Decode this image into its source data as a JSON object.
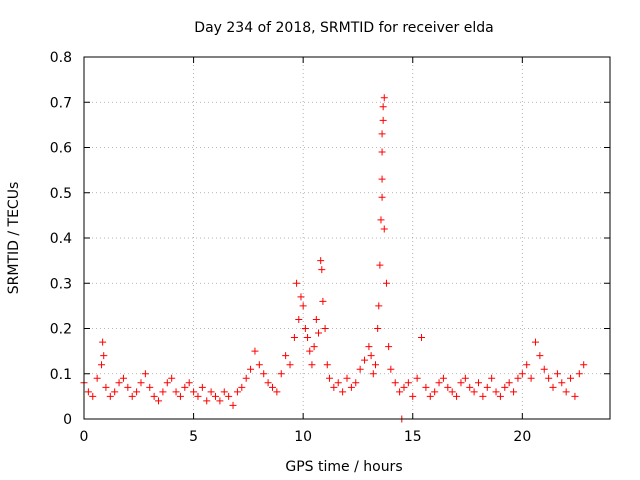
{
  "chart_data": {
    "type": "scatter",
    "title": "Day 234 of 2018, SRMTID for receiver elda",
    "xlabel": "GPS time / hours",
    "ylabel": "SRMTID / TECUs",
    "xlim": [
      0,
      24
    ],
    "ylim": [
      0,
      0.8
    ],
    "xticks": [
      0,
      5,
      10,
      15,
      20
    ],
    "yticks": [
      0,
      0.1,
      0.2,
      0.3,
      0.4,
      0.5,
      0.6,
      0.7,
      0.8
    ],
    "xtick_labels": [
      "0",
      "5",
      "10",
      "15",
      "20"
    ],
    "ytick_labels": [
      "0",
      "0.1",
      "0.2",
      "0.3",
      "0.4",
      "0.5",
      "0.6",
      "0.7",
      "0.8"
    ],
    "grid": true,
    "marker": "+",
    "series": [
      {
        "name": "SRMTID",
        "color": "#ff0000",
        "x": [
          0.0,
          0.2,
          0.4,
          0.6,
          0.8,
          0.85,
          0.9,
          1.0,
          1.2,
          1.4,
          1.6,
          1.8,
          2.0,
          2.2,
          2.4,
          2.6,
          2.8,
          3.0,
          3.2,
          3.4,
          3.6,
          3.8,
          4.0,
          4.2,
          4.4,
          4.6,
          4.8,
          5.0,
          5.2,
          5.4,
          5.6,
          5.8,
          6.0,
          6.2,
          6.4,
          6.6,
          6.8,
          7.0,
          7.2,
          7.4,
          7.6,
          7.8,
          8.0,
          8.2,
          8.4,
          8.6,
          8.8,
          9.0,
          9.2,
          9.4,
          9.6,
          9.7,
          9.8,
          9.9,
          10.0,
          10.1,
          10.2,
          10.3,
          10.4,
          10.5,
          10.6,
          10.7,
          10.8,
          10.85,
          10.9,
          11.0,
          11.1,
          11.2,
          11.4,
          11.6,
          11.8,
          12.0,
          12.2,
          12.4,
          12.6,
          12.8,
          13.0,
          13.1,
          13.2,
          13.3,
          13.4,
          13.45,
          13.5,
          13.55,
          13.6,
          13.6,
          13.6,
          13.6,
          13.65,
          13.65,
          13.7,
          13.7,
          13.8,
          13.9,
          14.0,
          14.2,
          14.4,
          14.5,
          14.6,
          14.8,
          15.0,
          15.2,
          15.4,
          15.6,
          15.8,
          16.0,
          16.2,
          16.4,
          16.6,
          16.8,
          17.0,
          17.2,
          17.4,
          17.6,
          17.8,
          18.0,
          18.2,
          18.4,
          18.6,
          18.8,
          19.0,
          19.2,
          19.4,
          19.6,
          19.8,
          20.0,
          20.2,
          20.4,
          20.6,
          20.8,
          21.0,
          21.2,
          21.4,
          21.6,
          21.8,
          22.0,
          22.2,
          22.4,
          22.6,
          22.8
        ],
        "y": [
          0.08,
          0.06,
          0.05,
          0.09,
          0.12,
          0.17,
          0.14,
          0.07,
          0.05,
          0.06,
          0.08,
          0.09,
          0.07,
          0.05,
          0.06,
          0.08,
          0.1,
          0.07,
          0.05,
          0.04,
          0.06,
          0.08,
          0.09,
          0.06,
          0.05,
          0.07,
          0.08,
          0.06,
          0.05,
          0.07,
          0.04,
          0.06,
          0.05,
          0.04,
          0.06,
          0.05,
          0.03,
          0.06,
          0.07,
          0.09,
          0.11,
          0.15,
          0.12,
          0.1,
          0.08,
          0.07,
          0.06,
          0.1,
          0.14,
          0.12,
          0.18,
          0.3,
          0.22,
          0.27,
          0.25,
          0.2,
          0.18,
          0.15,
          0.12,
          0.16,
          0.22,
          0.19,
          0.35,
          0.33,
          0.26,
          0.2,
          0.12,
          0.09,
          0.07,
          0.08,
          0.06,
          0.09,
          0.07,
          0.08,
          0.11,
          0.13,
          0.16,
          0.14,
          0.1,
          0.12,
          0.2,
          0.25,
          0.34,
          0.44,
          0.49,
          0.53,
          0.59,
          0.63,
          0.66,
          0.69,
          0.71,
          0.42,
          0.3,
          0.16,
          0.11,
          0.08,
          0.06,
          0.0,
          0.07,
          0.08,
          0.05,
          0.09,
          0.18,
          0.07,
          0.05,
          0.06,
          0.08,
          0.09,
          0.07,
          0.06,
          0.05,
          0.08,
          0.09,
          0.07,
          0.06,
          0.08,
          0.05,
          0.07,
          0.09,
          0.06,
          0.05,
          0.07,
          0.08,
          0.06,
          0.09,
          0.1,
          0.12,
          0.09,
          0.17,
          0.14,
          0.11,
          0.09,
          0.07,
          0.1,
          0.08,
          0.06,
          0.09,
          0.05,
          0.1,
          0.12
        ],
        "note": "dense plus-marker time series; approximate representative samples read from the figure"
      }
    ]
  }
}
